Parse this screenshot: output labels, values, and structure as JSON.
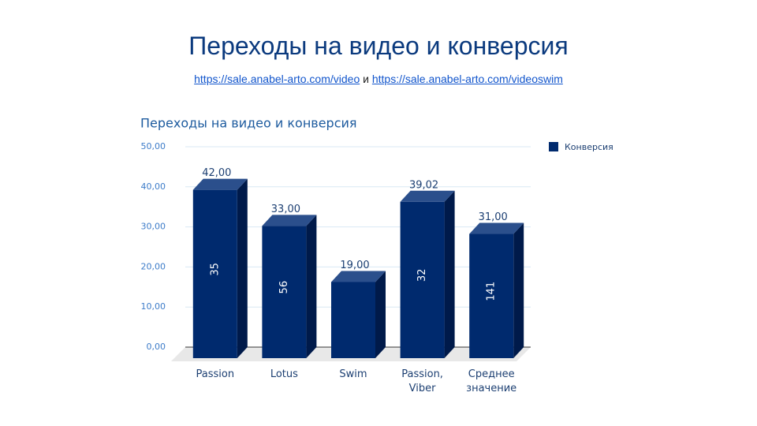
{
  "slide_title": "Переходы на видео и конверсия",
  "subtitle": {
    "link1": "https://sale.anabel-arto.com/video",
    "conjunction": "и",
    "link2": "https://sale.anabel-arto.com/videoswim"
  },
  "chart_data": {
    "type": "bar3d",
    "title": "Переходы на видео и конверсия",
    "categories": [
      "Passion",
      "Lotus",
      "Swim",
      "Passion, Viber",
      "Среднее значение"
    ],
    "series": [
      {
        "name": "Конверсия",
        "color": "#002a6e",
        "values": [
          42,
          33,
          19,
          39.02,
          31
        ],
        "value_labels": [
          "42,00",
          "33,00",
          "19,00",
          "39,02",
          "31,00"
        ],
        "inner_labels": [
          35,
          56,
          null,
          32,
          141
        ]
      }
    ],
    "ylim": [
      0,
      50
    ],
    "yticks": [
      {
        "value": 0,
        "label": "0,00"
      },
      {
        "value": 10,
        "label": "10,00"
      },
      {
        "value": 20,
        "label": "20,00"
      },
      {
        "value": 30,
        "label": "30,00"
      },
      {
        "value": 40,
        "label": "40,00"
      },
      {
        "value": 50,
        "label": "50,00"
      }
    ],
    "grid": true,
    "legend": "right"
  }
}
